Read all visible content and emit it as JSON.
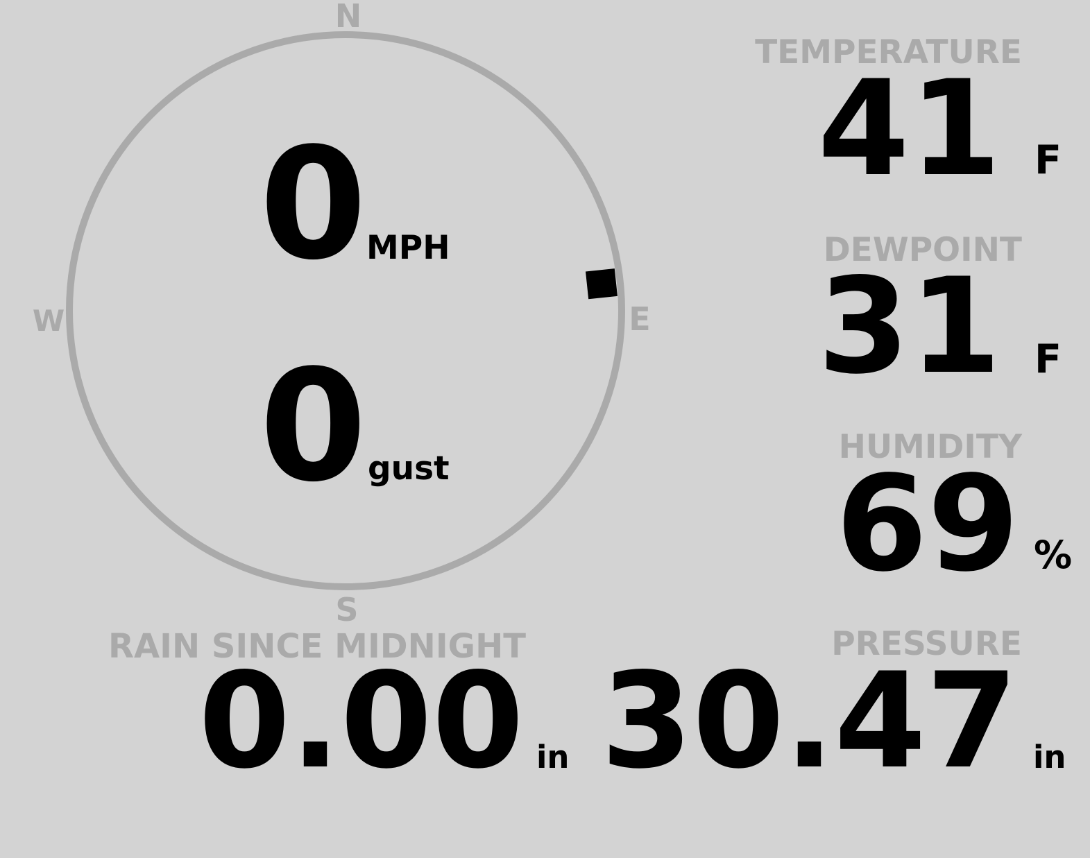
{
  "colors": {
    "background": "#d3d3d3",
    "label": "#aaaaaa",
    "value": "#000000",
    "dial": "#aaaaaa"
  },
  "wind": {
    "compass": {
      "n": "N",
      "e": "E",
      "s": "S",
      "w": "W"
    },
    "direction_deg": 84,
    "speed": "0",
    "speed_unit": "MPH",
    "gust": "0",
    "gust_unit": "gust"
  },
  "temperature": {
    "label": "TEMPERATURE",
    "value": "41",
    "unit": "F"
  },
  "dewpoint": {
    "label": "DEWPOINT",
    "value": "31",
    "unit": "F"
  },
  "humidity": {
    "label": "HUMIDITY",
    "value": "69",
    "unit": "%"
  },
  "rain": {
    "label": "RAIN SINCE MIDNIGHT",
    "value": "0.00",
    "unit": "in"
  },
  "pressure": {
    "label": "PRESSURE",
    "value": "30.47",
    "unit": "in"
  }
}
